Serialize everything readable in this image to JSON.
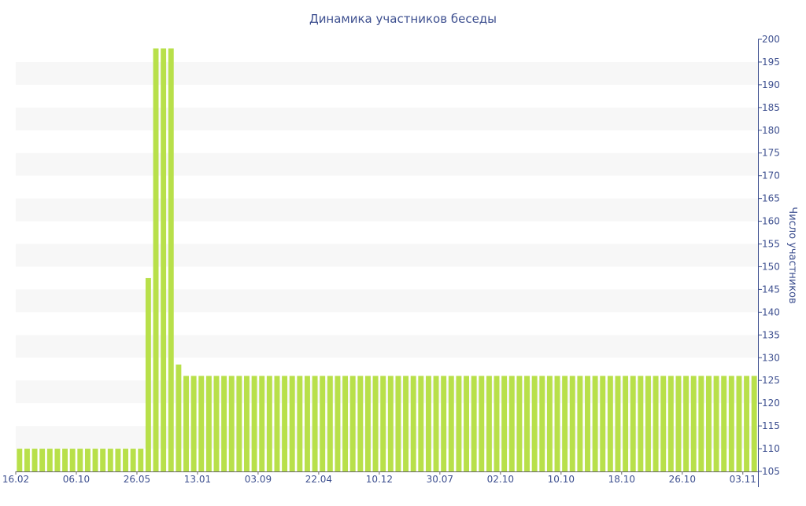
{
  "chart_data": {
    "type": "bar",
    "title": "Динамика участников беседы",
    "xlabel": "",
    "ylabel": "Число участников",
    "ylim": [
      105,
      200
    ],
    "yticks": [
      105,
      110,
      115,
      120,
      125,
      130,
      135,
      140,
      145,
      150,
      155,
      160,
      165,
      170,
      175,
      180,
      185,
      190,
      195,
      200
    ],
    "grid": "alternating-bands",
    "legend": "none",
    "x_tick_labels": [
      {
        "label": "16.02",
        "index": 0
      },
      {
        "label": "06.10",
        "index": 8
      },
      {
        "label": "26.05",
        "index": 16
      },
      {
        "label": "13.01",
        "index": 24
      },
      {
        "label": "03.09",
        "index": 32
      },
      {
        "label": "22.04",
        "index": 40
      },
      {
        "label": "10.12",
        "index": 48
      },
      {
        "label": "30.07",
        "index": 56
      },
      {
        "label": "02.10",
        "index": 64
      },
      {
        "label": "10.10",
        "index": 72
      },
      {
        "label": "18.10",
        "index": 80
      },
      {
        "label": "26.10",
        "index": 88
      },
      {
        "label": "03.11",
        "index": 96
      }
    ],
    "values": [
      110,
      110,
      110,
      110,
      110,
      110,
      110,
      110,
      110,
      110,
      110,
      110,
      110,
      110,
      110,
      110,
      110,
      147.5,
      198,
      198,
      198,
      128.5,
      126,
      126,
      126,
      126,
      126,
      126,
      126,
      126,
      126,
      126,
      126,
      126,
      126,
      126,
      126,
      126,
      126,
      126,
      126,
      126,
      126,
      126,
      126,
      126,
      126,
      126,
      126,
      126,
      126,
      126,
      126,
      126,
      126,
      126,
      126,
      126,
      126,
      126,
      126,
      126,
      126,
      126,
      126,
      126,
      126,
      126,
      126,
      126,
      126,
      126,
      126,
      126,
      126,
      126,
      126,
      126,
      126,
      126,
      126,
      126,
      126,
      126,
      126,
      126,
      126,
      126,
      126,
      126,
      126,
      126,
      126,
      126,
      126,
      126,
      126,
      126
    ],
    "colors": {
      "bar": "#b8e04a",
      "band": "#f7f7f7",
      "axis": "#3d4f8f",
      "text": "#3d4f8f",
      "baseline": "#666666"
    }
  }
}
